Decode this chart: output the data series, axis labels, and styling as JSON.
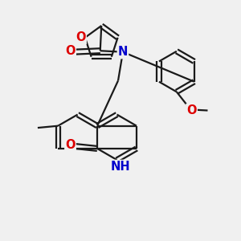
{
  "background_color": "#f0f0f0",
  "bond_color": "#1a1a1a",
  "bond_width": 1.6,
  "double_sep": 0.018,
  "atom_colors": {
    "O": "#dd0000",
    "N": "#0000cc",
    "C": "#1a1a1a"
  },
  "font_size_atom": 10.5,
  "font_size_small": 8.5
}
